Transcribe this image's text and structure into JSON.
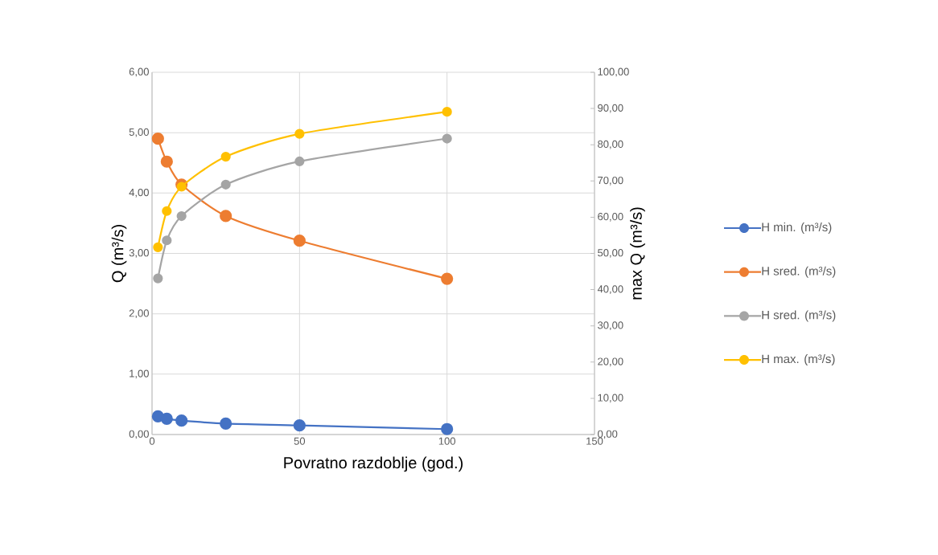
{
  "chart_data": {
    "type": "line",
    "xlabel": "Povratno razdoblje (god.)",
    "ylabel": "Q (m³/s)",
    "y2label": "max Q (m³/s)",
    "x": [
      2,
      5,
      10,
      25,
      50,
      100
    ],
    "series": [
      {
        "name": "H min. (m³/s)",
        "color": "#4472c4",
        "values": [
          0.3,
          0.26,
          0.23,
          0.18,
          0.15,
          0.09
        ]
      },
      {
        "name": "H sred. (m³/s)",
        "color": "#ed7d31",
        "values": [
          4.9,
          4.52,
          4.14,
          3.62,
          3.21,
          2.58
        ]
      },
      {
        "name": "H sred. (m³/s)",
        "color": "#a5a5a5",
        "axis": "y2",
        "values": [
          43.1,
          53.6,
          60.3,
          69.0,
          75.4,
          81.7
        ]
      },
      {
        "name": "H max. (m³/s)",
        "color": "#ffc000",
        "axis": "y2",
        "values": [
          51.7,
          61.7,
          68.4,
          76.7,
          83.0,
          89.1
        ]
      }
    ],
    "xlim": [
      0,
      150
    ],
    "xticks": [
      0,
      50,
      100,
      150
    ],
    "ylim": [
      0,
      6
    ],
    "yticks": [
      {
        "value": 0,
        "label": "0,00"
      },
      {
        "value": 1,
        "label": "1,00"
      },
      {
        "value": 2,
        "label": "2,00"
      },
      {
        "value": 3,
        "label": "3,00"
      },
      {
        "value": 4,
        "label": "4,00"
      },
      {
        "value": 5,
        "label": "5,00"
      },
      {
        "value": 6,
        "label": "6,00"
      }
    ],
    "y2lim": [
      0,
      100
    ],
    "y2ticks": [
      {
        "value": 0,
        "label": "0,00"
      },
      {
        "value": 10,
        "label": "10,00"
      },
      {
        "value": 20,
        "label": "20,00"
      },
      {
        "value": 30,
        "label": "30,00"
      },
      {
        "value": 40,
        "label": "40,00"
      },
      {
        "value": 50,
        "label": "50,00"
      },
      {
        "value": 60,
        "label": "60,00"
      },
      {
        "value": 70,
        "label": "70,00"
      },
      {
        "value": 80,
        "label": "80,00"
      },
      {
        "value": 90,
        "label": "90,00"
      },
      {
        "value": 100,
        "label": "100,00"
      }
    ],
    "grid": true,
    "legend": "right",
    "marker": "circle",
    "line_style": "solid"
  }
}
